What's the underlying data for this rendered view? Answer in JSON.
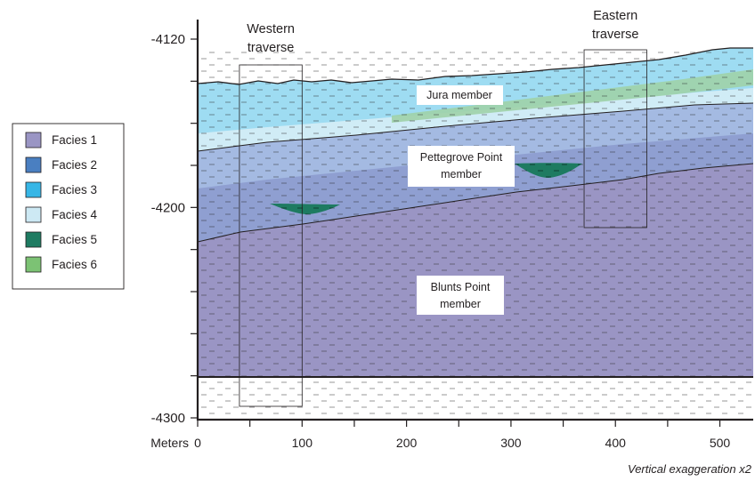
{
  "colors": {
    "facies_1": "#9a95c4",
    "facies_2": "#4a7fc1",
    "facies_3": "#37b6e6",
    "facies_4": "#cde9f4",
    "facies_5": "#1e7b61",
    "facies_6": "#7cc274"
  },
  "y_axis": {
    "range": [
      -4300,
      -4120
    ],
    "labeled_ticks": [
      "-4120",
      "-4200",
      "-4300"
    ],
    "minor_tick_step": 20
  },
  "x_axis": {
    "label": "Meters",
    "range": [
      0,
      520
    ],
    "labeled_ticks": [
      "0",
      "100",
      "200",
      "300",
      "400",
      "500"
    ],
    "minor_tick_step": 50
  },
  "traverses": [
    {
      "line1": "Western",
      "line2": "traverse",
      "x_start_m": 40,
      "x_end_m": 100
    },
    {
      "line1": "Eastern",
      "line2": "traverse",
      "x_start_m": 370,
      "x_end_m": 430
    }
  ],
  "members": [
    {
      "line1": "Jura member",
      "line2": ""
    },
    {
      "line1": "Pettegrove Point",
      "line2": "member"
    },
    {
      "line1": "Blunts Point",
      "line2": "member"
    }
  ],
  "legend": [
    {
      "label": "Facies 1",
      "color": "#9a95c4"
    },
    {
      "label": "Facies 2",
      "color": "#4a7fc1"
    },
    {
      "label": "Facies 3",
      "color": "#37b6e6"
    },
    {
      "label": "Facies 4",
      "color": "#cde9f4"
    },
    {
      "label": "Facies 5",
      "color": "#1e7b61"
    },
    {
      "label": "Facies 6",
      "color": "#7cc274"
    }
  ],
  "note": "Vertical exaggeration x2"
}
